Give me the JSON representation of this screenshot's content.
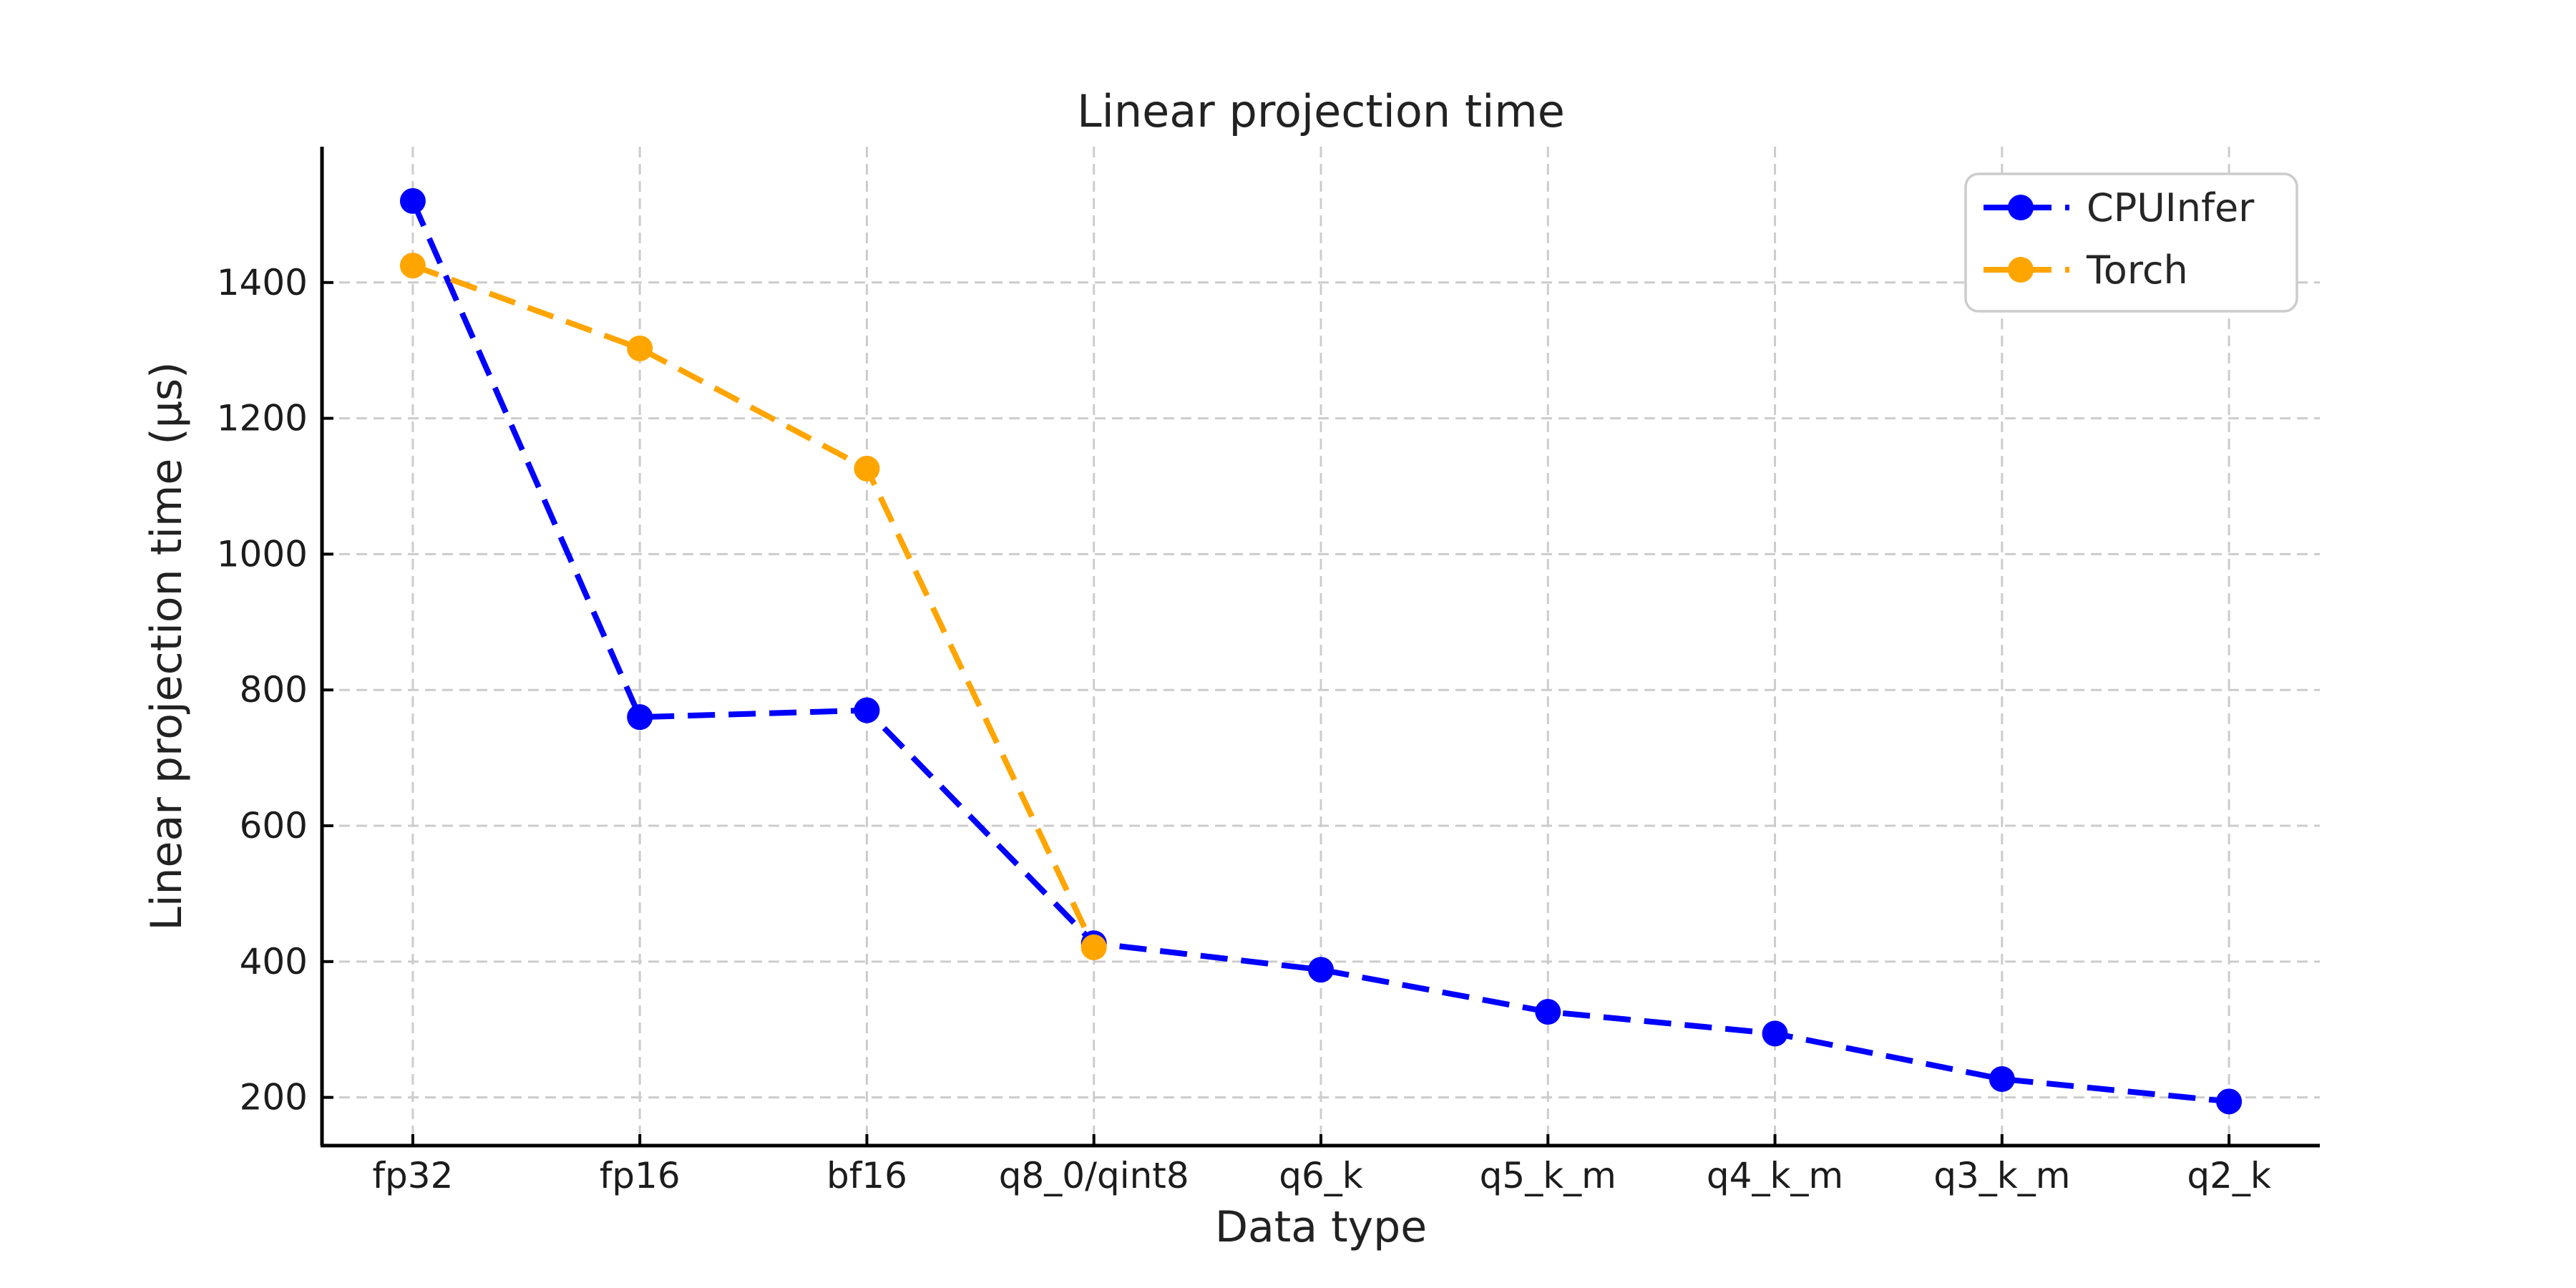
{
  "chart_data": {
    "type": "line",
    "title": "Linear projection time",
    "xlabel": "Data type",
    "ylabel": "Linear projection time (µs)",
    "categories": [
      "fp32",
      "fp16",
      "bf16",
      "q8_0/qint8",
      "q6_k",
      "q5_k_m",
      "q4_k_m",
      "q3_k_m",
      "q2_k"
    ],
    "series": [
      {
        "name": "CPUInfer",
        "color": "#0000ff",
        "values": [
          1520,
          760,
          770,
          427,
          388,
          326,
          294,
          227,
          194
        ]
      },
      {
        "name": "Torch",
        "color": "#ffa500",
        "values": [
          1425,
          1303,
          1126,
          421,
          null,
          null,
          null,
          null,
          null
        ]
      }
    ],
    "yticks": [
      200,
      400,
      600,
      800,
      1000,
      1200,
      1400
    ],
    "ylim": [
      129,
      1600
    ],
    "grid": "dashed, both axes, light gray",
    "legend_position": "upper right",
    "line_style": "dashed",
    "marker": "circle",
    "background": "#ffffff",
    "spine_color": "#000000",
    "grid_color": "#cccccc"
  }
}
